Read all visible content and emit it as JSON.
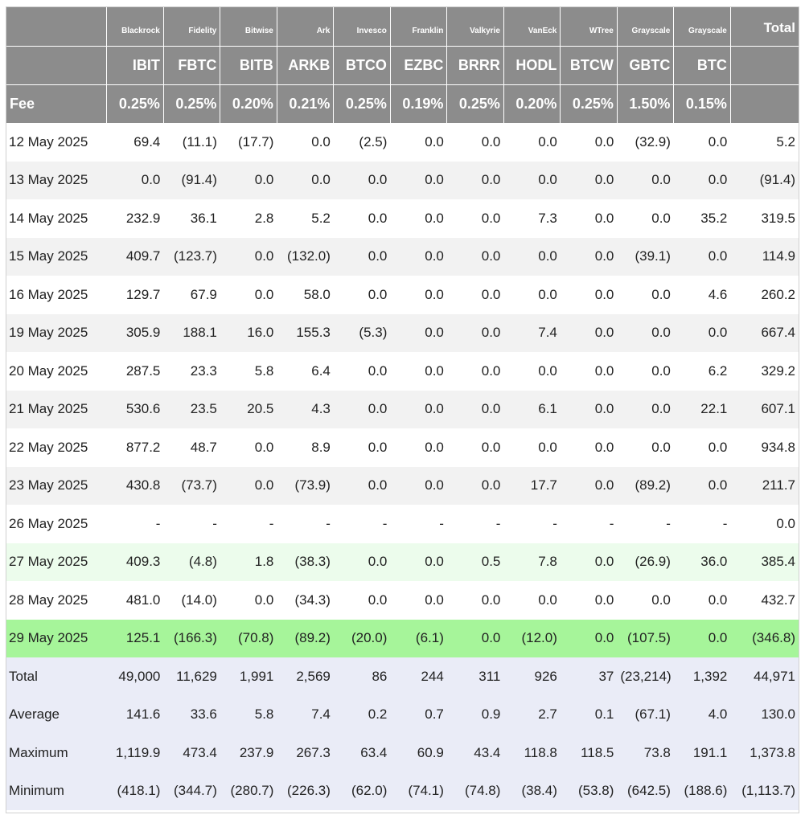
{
  "header": {
    "issuers": [
      "Blackrock",
      "Fidelity",
      "Bitwise",
      "Ark",
      "Invesco",
      "Franklin",
      "Valkyrie",
      "VanEck",
      "WTree",
      "Grayscale",
      "Grayscale"
    ],
    "total_label": "Total",
    "tickers": [
      "IBIT",
      "FBTC",
      "BITB",
      "ARKB",
      "BTCO",
      "EZBC",
      "BRRR",
      "HODL",
      "BTCW",
      "GBTC",
      "BTC"
    ],
    "fee_label": "Fee",
    "fees": [
      "0.25%",
      "0.25%",
      "0.20%",
      "0.21%",
      "0.25%",
      "0.19%",
      "0.25%",
      "0.20%",
      "0.25%",
      "1.50%",
      "0.15%"
    ]
  },
  "rows": [
    {
      "date": "12 May 2025",
      "values": [
        "69.4",
        "(11.1)",
        "(17.7)",
        "0.0",
        "(2.5)",
        "0.0",
        "0.0",
        "0.0",
        "0.0",
        "(32.9)",
        "0.0"
      ],
      "total": "5.2"
    },
    {
      "date": "13 May 2025",
      "values": [
        "0.0",
        "(91.4)",
        "0.0",
        "0.0",
        "0.0",
        "0.0",
        "0.0",
        "0.0",
        "0.0",
        "0.0",
        "0.0"
      ],
      "total": "(91.4)"
    },
    {
      "date": "14 May 2025",
      "values": [
        "232.9",
        "36.1",
        "2.8",
        "5.2",
        "0.0",
        "0.0",
        "0.0",
        "7.3",
        "0.0",
        "0.0",
        "35.2"
      ],
      "total": "319.5"
    },
    {
      "date": "15 May 2025",
      "values": [
        "409.7",
        "(123.7)",
        "0.0",
        "(132.0)",
        "0.0",
        "0.0",
        "0.0",
        "0.0",
        "0.0",
        "(39.1)",
        "0.0"
      ],
      "total": "114.9"
    },
    {
      "date": "16 May 2025",
      "values": [
        "129.7",
        "67.9",
        "0.0",
        "58.0",
        "0.0",
        "0.0",
        "0.0",
        "0.0",
        "0.0",
        "0.0",
        "4.6"
      ],
      "total": "260.2"
    },
    {
      "date": "19 May 2025",
      "values": [
        "305.9",
        "188.1",
        "16.0",
        "155.3",
        "(5.3)",
        "0.0",
        "0.0",
        "7.4",
        "0.0",
        "0.0",
        "0.0"
      ],
      "total": "667.4"
    },
    {
      "date": "20 May 2025",
      "values": [
        "287.5",
        "23.3",
        "5.8",
        "6.4",
        "0.0",
        "0.0",
        "0.0",
        "0.0",
        "0.0",
        "0.0",
        "6.2"
      ],
      "total": "329.2"
    },
    {
      "date": "21 May 2025",
      "values": [
        "530.6",
        "23.5",
        "20.5",
        "4.3",
        "0.0",
        "0.0",
        "0.0",
        "6.1",
        "0.0",
        "0.0",
        "22.1"
      ],
      "total": "607.1"
    },
    {
      "date": "22 May 2025",
      "values": [
        "877.2",
        "48.7",
        "0.0",
        "8.9",
        "0.0",
        "0.0",
        "0.0",
        "0.0",
        "0.0",
        "0.0",
        "0.0"
      ],
      "total": "934.8"
    },
    {
      "date": "23 May 2025",
      "values": [
        "430.8",
        "(73.7)",
        "0.0",
        "(73.9)",
        "0.0",
        "0.0",
        "0.0",
        "17.7",
        "0.0",
        "(89.2)",
        "0.0"
      ],
      "total": "211.7"
    },
    {
      "date": "26 May 2025",
      "values": [
        "-",
        "-",
        "-",
        "-",
        "-",
        "-",
        "-",
        "-",
        "-",
        "-",
        "-"
      ],
      "total": "0.0"
    },
    {
      "date": "27 May 2025",
      "values": [
        "409.3",
        "(4.8)",
        "1.8",
        "(38.3)",
        "0.0",
        "0.0",
        "0.5",
        "7.8",
        "0.0",
        "(26.9)",
        "36.0"
      ],
      "total": "385.4",
      "highlight": "light"
    },
    {
      "date": "28 May 2025",
      "values": [
        "481.0",
        "(14.0)",
        "0.0",
        "(34.3)",
        "0.0",
        "0.0",
        "0.0",
        "0.0",
        "0.0",
        "0.0",
        "0.0"
      ],
      "total": "432.7"
    },
    {
      "date": "29 May 2025",
      "values": [
        "125.1",
        "(166.3)",
        "(70.8)",
        "(89.2)",
        "(20.0)",
        "(6.1)",
        "0.0",
        "(12.0)",
        "0.0",
        "(107.5)",
        "0.0"
      ],
      "total": "(346.8)",
      "highlight": "bright"
    }
  ],
  "summary": [
    {
      "label": "Total",
      "values": [
        "49,000",
        "11,629",
        "1,991",
        "2,569",
        "86",
        "244",
        "311",
        "926",
        "37",
        "(23,214)",
        "1,392"
      ],
      "total": "44,971"
    },
    {
      "label": "Average",
      "values": [
        "141.6",
        "33.6",
        "5.8",
        "7.4",
        "0.2",
        "0.7",
        "0.9",
        "2.7",
        "0.1",
        "(67.1)",
        "4.0"
      ],
      "total": "130.0"
    },
    {
      "label": "Maximum",
      "values": [
        "1,119.9",
        "473.4",
        "237.9",
        "267.3",
        "63.4",
        "60.9",
        "43.4",
        "118.8",
        "118.5",
        "73.8",
        "191.1"
      ],
      "total": "1,373.8"
    },
    {
      "label": "Minimum",
      "values": [
        "(418.1)",
        "(344.7)",
        "(280.7)",
        "(226.3)",
        "(62.0)",
        "(74.1)",
        "(74.8)",
        "(38.4)",
        "(53.8)",
        "(642.5)",
        "(188.6)"
      ],
      "total": "(1,113.7)"
    }
  ],
  "colors": {
    "header_bg": "#8c8c8c",
    "negative": "#e0382b",
    "row_alt": "#f2f2f2",
    "row_light_green": "#ecfcec",
    "row_bright_green": "#a6f59a",
    "summary_bg": "#eaecf7"
  }
}
